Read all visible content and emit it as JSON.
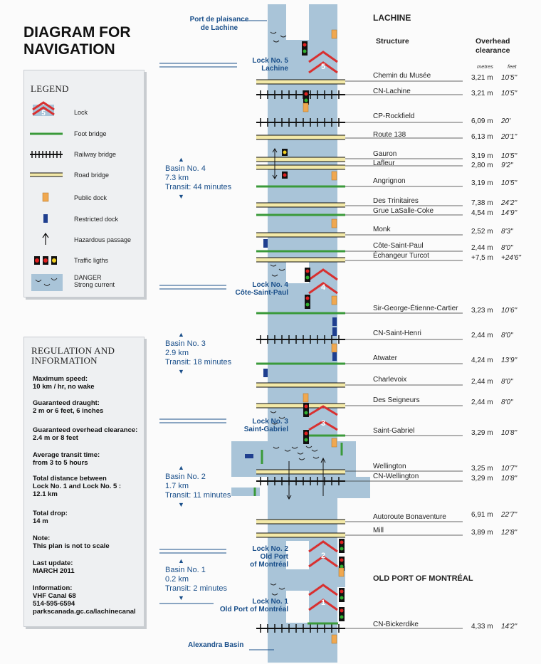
{
  "title": {
    "line1": "DIAGRAM FOR",
    "line2": "NAVIGATION"
  },
  "legend": {
    "heading": "LEGEND",
    "items": [
      "Lock",
      "Foot bridge",
      "Railway bridge",
      "Road bridge",
      "Public dock",
      "Restricted dock",
      "Hazardous passage",
      "Traffic ligths",
      "DANGER",
      "Strong current"
    ]
  },
  "regulation": {
    "heading1": "REGULATION AND",
    "heading2": "INFORMATION",
    "max_speed_label": "Maximum speed:",
    "max_speed_value": "10 km / hr, no wake",
    "draught_label": "Guaranteed draught:",
    "draught_value": "2 m or 6 feet, 6 inches",
    "clearance_label": "Guaranteed overhead clearance:",
    "clearance_value": "2.4 m or 8 feet",
    "transit_label": "Average transit time:",
    "transit_value": "from 3 to 5 hours",
    "distance_label1": "Total distance between",
    "distance_label2": "Lock No. 1 and Lock No. 5 :",
    "distance_value": "12.1 km",
    "drop_label": "Total drop:",
    "drop_value": "14 m",
    "note_label": "Note:",
    "note_value": "This plan is not to scale",
    "update_label": "Last update:",
    "update_value": "MARCH 2011",
    "info_label": "Information:",
    "info_vhf": "VHF Canal 68",
    "info_phone": "514-595-6594",
    "info_url": "parkscanada.gc.ca/lachinecanal"
  },
  "places": {
    "port1": "Port de plaisance",
    "port2": "de Lachine",
    "lachine": "LACHINE",
    "old_port": "OLD PORT OF MONTRÉAL",
    "alexandra": "Alexandra Basin"
  },
  "headers": {
    "structure": "Structure",
    "clearance1": "Overhead",
    "clearance2": "clearance",
    "metres": "metres",
    "feet": "feet"
  },
  "basins": [
    {
      "name": "Basin No. 4",
      "dist": "7.3 km",
      "transit": "Transit:  44 minutes"
    },
    {
      "name": "Basin No. 3",
      "dist": "2.9 km",
      "transit": "Transit:  18 minutes"
    },
    {
      "name": "Basin No. 2",
      "dist": "1.7 km",
      "transit": "Transit:  11 minutes"
    },
    {
      "name": "Basin No. 1",
      "dist": "0.2 km",
      "transit": "Transit:  2 minutes"
    }
  ],
  "locks": [
    {
      "line1": "Lock No. 5",
      "line2": "Lachine",
      "line3": "",
      "num": "5"
    },
    {
      "line1": "Lock No. 4",
      "line2": "Côte-Saint-Paul",
      "line3": "",
      "num": "4"
    },
    {
      "line1": "Lock No. 3",
      "line2": "Saint-Gabriel",
      "line3": "",
      "num": "3"
    },
    {
      "line1": "Lock No. 2",
      "line2": "Old Port",
      "line3": "of Montréal",
      "num": "2"
    },
    {
      "line1": "Lock No. 1",
      "line2": "Old Port of Montréal",
      "line3": "",
      "num": "1"
    }
  ],
  "structures": [
    {
      "name": "Chemin du Musée",
      "m": "3,21 m",
      "ft": "10'5\""
    },
    {
      "name": "CN-Lachine",
      "m": "3,21 m",
      "ft": "10'5\""
    },
    {
      "name": "CP-Rockfield",
      "m": "6,09 m",
      "ft": "20'"
    },
    {
      "name": "Route 138",
      "m": "6,13 m",
      "ft": "20'1\""
    },
    {
      "name": "Gauron",
      "m": "3,19 m",
      "ft": "10'5\""
    },
    {
      "name": "Lafleur",
      "m": "2,80 m",
      "ft": "9'2\""
    },
    {
      "name": "Angrignon",
      "m": "3,19 m",
      "ft": "10'5\""
    },
    {
      "name": "Des Trinitaires",
      "m": "7,38 m",
      "ft": "24'2\""
    },
    {
      "name": "Grue LaSalle-Coke",
      "m": "4,54 m",
      "ft": "14'9\""
    },
    {
      "name": "Monk",
      "m": "2,52 m",
      "ft": "8'3\""
    },
    {
      "name": "Côte-Saint-Paul",
      "m": "2,44 m",
      "ft": "8'0\""
    },
    {
      "name": "Échangeur Turcot",
      "m": "+7,5 m",
      "ft": "+24'6\""
    },
    {
      "name": "Sir-George-Étienne-Cartier",
      "m": "3,23 m",
      "ft": "10'6\""
    },
    {
      "name": "CN-Saint-Henri",
      "m": "2,44 m",
      "ft": "8'0\""
    },
    {
      "name": "Atwater",
      "m": "4,24 m",
      "ft": "13'9\""
    },
    {
      "name": "Charlevoix",
      "m": "2,44 m",
      "ft": "8'0\""
    },
    {
      "name": "Des Seigneurs",
      "m": "2,44 m",
      "ft": "8'0\""
    },
    {
      "name": "Saint-Gabriel",
      "m": "3,29 m",
      "ft": "10'8\""
    },
    {
      "name": "Wellington",
      "m": "3,25 m",
      "ft": "10'7\""
    },
    {
      "name": "CN-Wellington",
      "m": "3,29 m",
      "ft": "10'8\""
    },
    {
      "name": "Autoroute Bonaventure",
      "m": "6,91 m",
      "ft": "22'7\""
    },
    {
      "name": "Mill",
      "m": "3,89 m",
      "ft": "12'8\""
    },
    {
      "name": "CN-Bickerdike",
      "m": "4,33 m",
      "ft": "14'2\""
    }
  ],
  "colors": {
    "water": "#a9c4d8",
    "blue_text": "#1a4f8a",
    "footbridge": "#3a9a3a",
    "roadbridge": "#f3e9a8",
    "dock": "#f0a850",
    "restricted": "#1f3f8f",
    "lock": "#d83030"
  }
}
